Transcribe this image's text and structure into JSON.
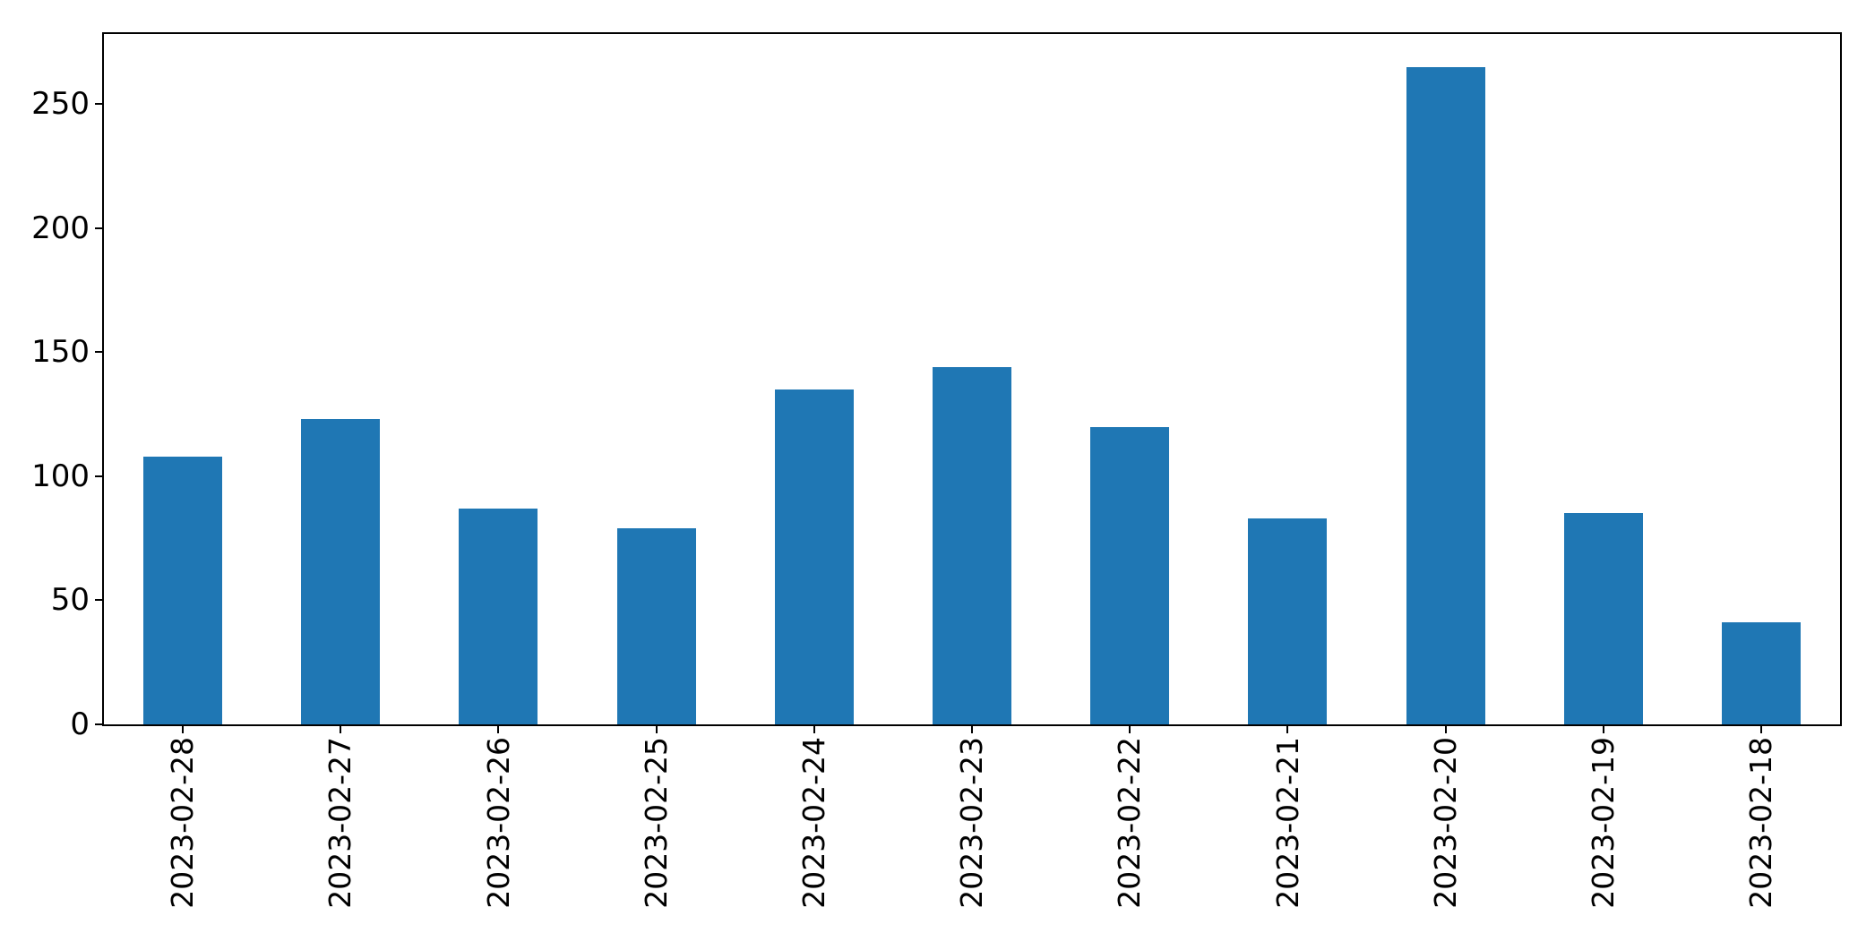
{
  "chart_data": {
    "type": "bar",
    "categories": [
      "2023-02-28",
      "2023-02-27",
      "2023-02-26",
      "2023-02-25",
      "2023-02-24",
      "2023-02-23",
      "2023-02-22",
      "2023-02-21",
      "2023-02-20",
      "2023-02-19",
      "2023-02-18"
    ],
    "values": [
      108,
      123,
      87,
      79,
      135,
      144,
      120,
      83,
      265,
      85,
      41
    ],
    "title": "",
    "xlabel": "",
    "ylabel": "",
    "ylim": [
      0,
      278.25
    ],
    "yticks": [
      0,
      50,
      100,
      150,
      200,
      250
    ],
    "bar_color": "#1f77b4",
    "bar_width_fraction": 0.5,
    "grid": false,
    "legend": null,
    "x_tick_rotation_deg": 90
  },
  "figure": {
    "background": "#ffffff",
    "frame_color": "#000000",
    "text_color": "#000000"
  }
}
